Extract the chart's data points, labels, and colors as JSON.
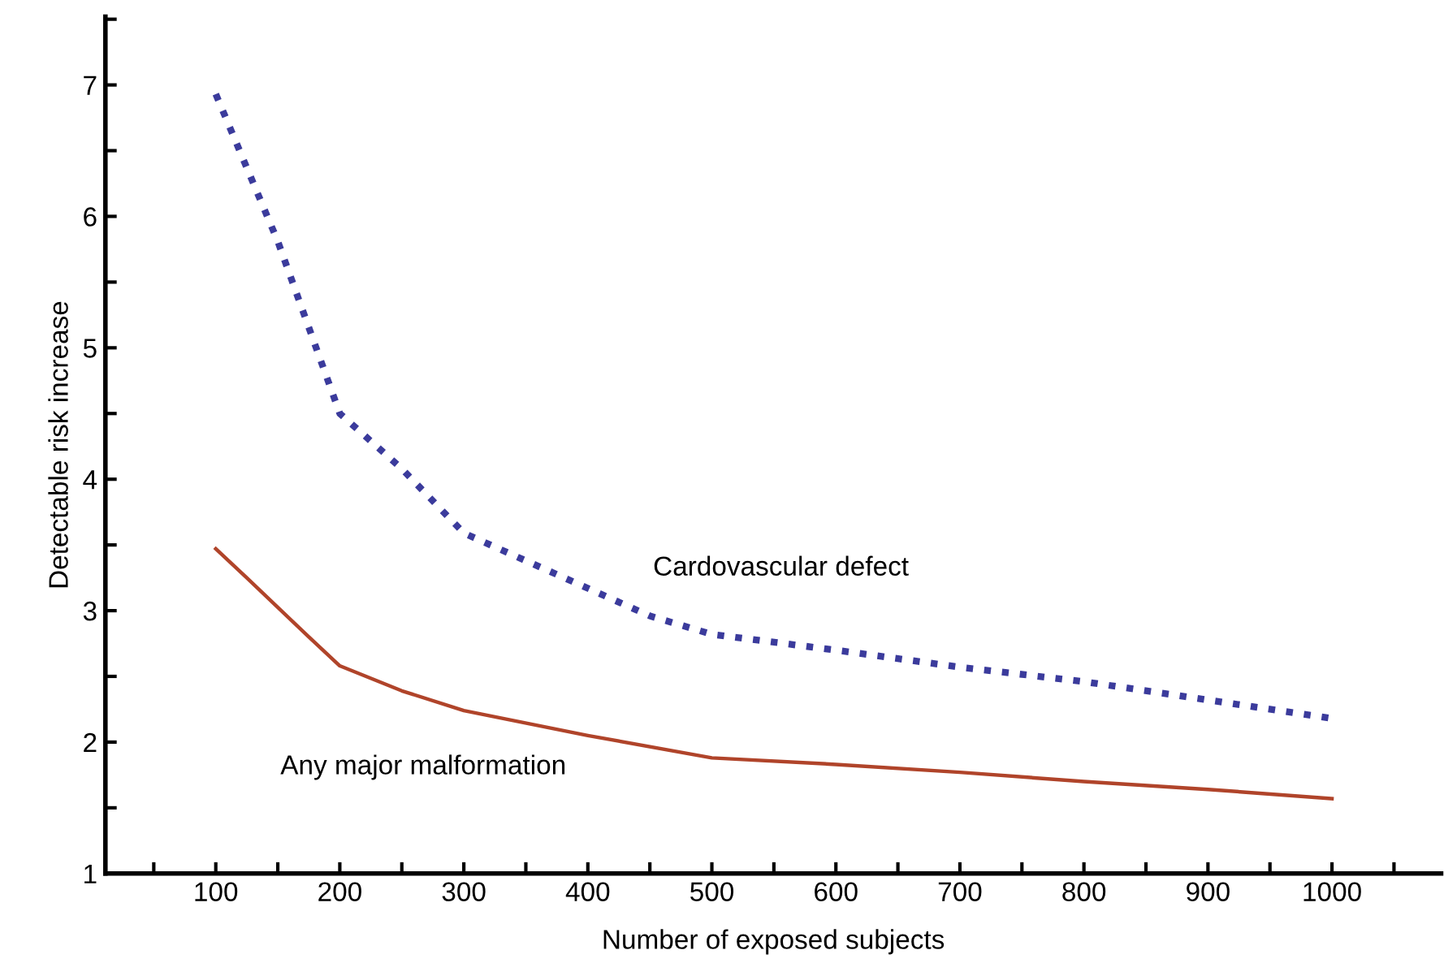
{
  "chart_data": {
    "type": "line",
    "xlabel": "Number of exposed subjects",
    "ylabel": "Detectable risk increase",
    "xlim": [
      11,
      1088
    ],
    "ylim": [
      1,
      7.52
    ],
    "xticks": [
      {
        "value": 50,
        "label": null
      },
      100,
      {
        "value": 150,
        "label": null
      },
      200,
      {
        "value": 250,
        "label": null
      },
      300,
      {
        "value": 350,
        "label": null
      },
      400,
      {
        "value": 450,
        "label": null
      },
      500,
      {
        "value": 550,
        "label": null
      },
      600,
      {
        "value": 650,
        "label": null
      },
      700,
      {
        "value": 750,
        "label": null
      },
      800,
      {
        "value": 850,
        "label": null
      },
      900,
      {
        "value": 950,
        "label": null
      },
      1000,
      {
        "value": 1050,
        "label": null
      }
    ],
    "yticks": [
      1,
      {
        "value": 1.5,
        "label": null
      },
      2,
      {
        "value": 2.5,
        "label": null
      },
      3,
      {
        "value": 3.5,
        "label": null
      },
      4,
      {
        "value": 4.5,
        "label": null
      },
      5,
      {
        "value": 5.5,
        "label": null
      },
      6,
      {
        "value": 6.5,
        "label": null
      },
      7,
      {
        "value": 7.5,
        "label": null
      }
    ],
    "grid": false,
    "legend": false,
    "marker": "none",
    "series": [
      {
        "name": "Cardovascular defect",
        "color": "#3b3b9c",
        "line_style": "dotted",
        "x": [
          100,
          150,
          200,
          250,
          300,
          400,
          450,
          500,
          600,
          700,
          800,
          900,
          1000
        ],
        "values": [
          6.93,
          5.81,
          4.5,
          4.08,
          3.59,
          3.17,
          2.96,
          2.82,
          2.7,
          2.57,
          2.46,
          2.32,
          2.18
        ]
      },
      {
        "name": "Any major malformation",
        "color": "#b0442a",
        "line_style": "solid",
        "x": [
          100,
          125,
          175,
          200,
          250,
          300,
          400,
          500,
          600,
          700,
          800,
          900,
          1000
        ],
        "values": [
          3.47,
          3.25,
          2.8,
          2.58,
          2.39,
          2.24,
          2.05,
          1.88,
          1.83,
          1.77,
          1.7,
          1.64,
          1.57
        ]
      }
    ]
  }
}
